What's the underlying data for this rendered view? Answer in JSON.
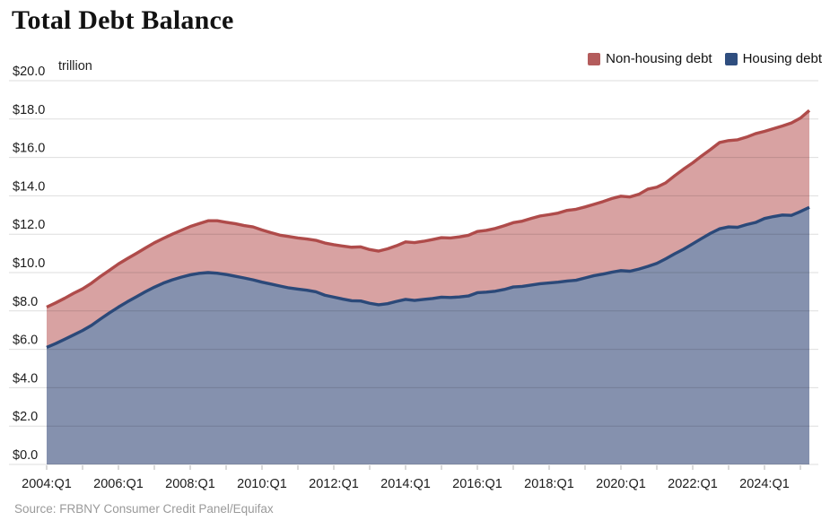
{
  "header": {
    "title": "Total Debt Balance"
  },
  "legend": [
    {
      "label": "Non-housing debt",
      "color": "#b45c5c"
    },
    {
      "label": "Housing debt",
      "color": "#2f4e7f"
    }
  ],
  "source": "Source: FRBNY Consumer Credit Panel/Equifax",
  "chart_data": {
    "type": "area",
    "stacked": true,
    "title": "Total Debt Balance",
    "unit": "trillion",
    "x_frequency": "quarterly",
    "x_start": "2004:Q1",
    "x_end": "2025:Q2",
    "ylim": [
      0,
      20
    ],
    "grid": true,
    "legend_position": "top-right",
    "yticks": [
      {
        "value": 20,
        "label": "$20.0"
      },
      {
        "value": 18,
        "label": "$18.0"
      },
      {
        "value": 16,
        "label": "$16.0"
      },
      {
        "value": 14,
        "label": "$14.0"
      },
      {
        "value": 12,
        "label": "$12.0"
      },
      {
        "value": 10,
        "label": "$10.0"
      },
      {
        "value": 8,
        "label": "$8.0"
      },
      {
        "value": 6,
        "label": "$6.0"
      },
      {
        "value": 4,
        "label": "$4.0"
      },
      {
        "value": 2,
        "label": "$2.0"
      },
      {
        "value": 0,
        "label": "$0.0"
      }
    ],
    "xticks": [
      {
        "index": 0,
        "label": "2004:Q1"
      },
      {
        "index": 8,
        "label": "2006:Q1"
      },
      {
        "index": 16,
        "label": "2008:Q1"
      },
      {
        "index": 24,
        "label": "2010:Q1"
      },
      {
        "index": 32,
        "label": "2012:Q1"
      },
      {
        "index": 40,
        "label": "2014:Q1"
      },
      {
        "index": 48,
        "label": "2016:Q1"
      },
      {
        "index": 56,
        "label": "2018:Q1"
      },
      {
        "index": 64,
        "label": "2020:Q1"
      },
      {
        "index": 72,
        "label": "2022:Q1"
      },
      {
        "index": 80,
        "label": "2024:Q1"
      }
    ],
    "series": [
      {
        "name": "Housing debt",
        "values": [
          6.1,
          6.3,
          6.52,
          6.75,
          6.98,
          7.25,
          7.58,
          7.9,
          8.2,
          8.48,
          8.74,
          9.0,
          9.24,
          9.45,
          9.62,
          9.76,
          9.88,
          9.96,
          10.0,
          9.97,
          9.9,
          9.81,
          9.72,
          9.62,
          9.5,
          9.4,
          9.3,
          9.2,
          9.14,
          9.08,
          9.0,
          8.82,
          8.72,
          8.62,
          8.53,
          8.52,
          8.4,
          8.32,
          8.38,
          8.5,
          8.6,
          8.55,
          8.6,
          8.65,
          8.72,
          8.7,
          8.73,
          8.78,
          8.95,
          8.98,
          9.03,
          9.12,
          9.25,
          9.28,
          9.35,
          9.42,
          9.46,
          9.5,
          9.56,
          9.6,
          9.72,
          9.84,
          9.92,
          10.02,
          10.1,
          10.07,
          10.18,
          10.32,
          10.48,
          10.72,
          10.98,
          11.22,
          11.5,
          11.78,
          12.05,
          12.28,
          12.38,
          12.36,
          12.5,
          12.61,
          12.82,
          12.92,
          13.0,
          12.98,
          13.18,
          13.4
        ]
      },
      {
        "name": "Non-housing debt",
        "values": [
          2.1,
          2.12,
          2.14,
          2.17,
          2.17,
          2.2,
          2.22,
          2.22,
          2.25,
          2.25,
          2.26,
          2.28,
          2.31,
          2.33,
          2.38,
          2.44,
          2.52,
          2.59,
          2.7,
          2.73,
          2.72,
          2.74,
          2.73,
          2.76,
          2.72,
          2.68,
          2.65,
          2.68,
          2.66,
          2.67,
          2.68,
          2.72,
          2.73,
          2.76,
          2.79,
          2.82,
          2.8,
          2.8,
          2.86,
          2.9,
          3.0,
          3.01,
          3.03,
          3.07,
          3.1,
          3.1,
          3.13,
          3.16,
          3.19,
          3.22,
          3.27,
          3.32,
          3.35,
          3.4,
          3.47,
          3.53,
          3.56,
          3.6,
          3.68,
          3.7,
          3.7,
          3.72,
          3.78,
          3.84,
          3.88,
          3.87,
          3.9,
          4.03,
          3.97,
          3.96,
          4.07,
          4.18,
          4.22,
          4.3,
          4.37,
          4.5,
          4.5,
          4.56,
          4.56,
          4.63,
          4.54,
          4.58,
          4.64,
          4.82,
          4.87,
          5.05
        ]
      }
    ],
    "colors": {
      "housing_fill": "#8591ae",
      "housing_line": "#2b4979",
      "nonhousing_fill": "#d8a2a2",
      "nonhousing_line": "#af4b4a",
      "grid_rgba": "rgba(0,0,0,0.13)",
      "tick": "#b5b5b5"
    }
  }
}
